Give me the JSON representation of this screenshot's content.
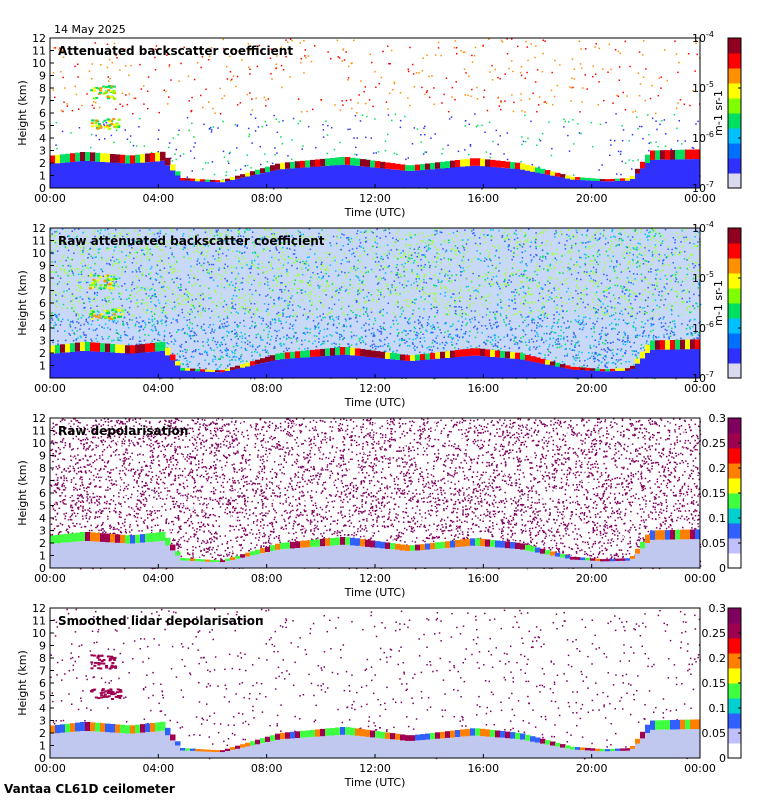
{
  "date_label": "14 May 2025",
  "footer": "Vantaa CL61D ceilometer",
  "colors": {
    "jet": [
      "#d9d9f0",
      "#3030ff",
      "#0070ff",
      "#00c0ff",
      "#00e060",
      "#80ff00",
      "#ffff00",
      "#ff9000",
      "#ff0000",
      "#900020"
    ],
    "depol": [
      "#ffffff",
      "#c0c0ff",
      "#3060ff",
      "#00d0d0",
      "#40ff40",
      "#ffff00",
      "#ff8000",
      "#ff0000",
      "#a00050",
      "#800060"
    ]
  },
  "chart_data": [
    {
      "type": "heatmap",
      "title": "Attenuated backscatter coefficient",
      "xlabel": "Time (UTC)",
      "ylabel": "Height (km)",
      "x_ticks": [
        "00:00",
        "04:00",
        "08:00",
        "12:00",
        "16:00",
        "20:00",
        "00:00"
      ],
      "y_ticks": [
        "0",
        "1",
        "2",
        "3",
        "4",
        "5",
        "6",
        "7",
        "8",
        "9",
        "10",
        "11",
        "12"
      ],
      "ylim": [
        0,
        12
      ],
      "colorbar": {
        "scale": "log",
        "range": [
          1e-07,
          0.0001
        ],
        "ticks": [
          "10-7",
          "10-6",
          "10-5",
          "10-4"
        ],
        "unit": "m-1 sr-1"
      }
    },
    {
      "type": "heatmap",
      "title": "Raw attenuated backscatter coefficient",
      "xlabel": "Time (UTC)",
      "ylabel": "Height (km)",
      "x_ticks": [
        "00:00",
        "04:00",
        "08:00",
        "12:00",
        "16:00",
        "20:00",
        "00:00"
      ],
      "y_ticks": [
        "1",
        "2",
        "3",
        "4",
        "5",
        "6",
        "7",
        "8",
        "9",
        "10",
        "11",
        "12"
      ],
      "ylim": [
        0,
        12
      ],
      "colorbar": {
        "scale": "log",
        "range": [
          1e-07,
          0.0001
        ],
        "ticks": [
          "10-7",
          "10-6",
          "10-5",
          "10-4"
        ],
        "unit": "m-1 sr-1"
      }
    },
    {
      "type": "heatmap",
      "title": "Raw depolarisation",
      "xlabel": "Time (UTC)",
      "ylabel": "Height (km)",
      "x_ticks": [
        "00:00",
        "04:00",
        "08:00",
        "12:00",
        "16:00",
        "20:00",
        "00:00"
      ],
      "y_ticks": [
        "0",
        "1",
        "2",
        "3",
        "4",
        "5",
        "6",
        "7",
        "8",
        "9",
        "10",
        "11",
        "12"
      ],
      "ylim": [
        0,
        12
      ],
      "colorbar": {
        "scale": "linear",
        "range": [
          0,
          0.3
        ],
        "ticks": [
          "0",
          "0.05",
          "0.1",
          "0.15",
          "0.2",
          "0.25",
          "0.3"
        ]
      }
    },
    {
      "type": "heatmap",
      "title": "Smoothed lidar depolarisation",
      "xlabel": "Time (UTC)",
      "ylabel": "Height (km)",
      "x_ticks": [
        "00:00",
        "04:00",
        "08:00",
        "12:00",
        "16:00",
        "20:00",
        "00:00"
      ],
      "y_ticks": [
        "0",
        "1",
        "2",
        "3",
        "4",
        "5",
        "6",
        "7",
        "8",
        "9",
        "10",
        "11",
        "12"
      ],
      "ylim": [
        0,
        12
      ],
      "colorbar": {
        "scale": "linear",
        "range": [
          0,
          0.3
        ],
        "ticks": [
          "0",
          "0.05",
          "0.1",
          "0.15",
          "0.2",
          "0.25",
          "0.3"
        ]
      }
    }
  ]
}
